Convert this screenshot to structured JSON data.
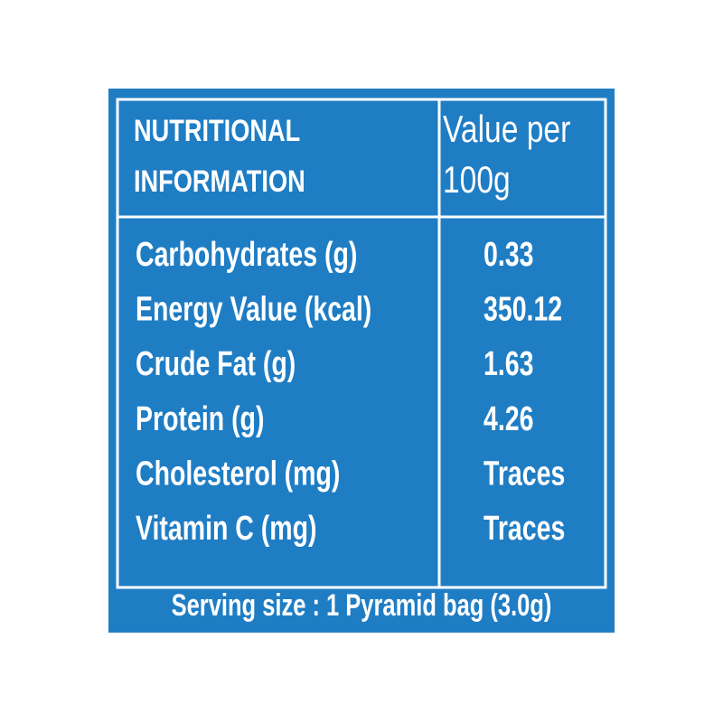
{
  "header": {
    "title_lines": [
      "NUTRITIONAL",
      "INFORMATION"
    ],
    "value_header_lines": [
      "Value per",
      "100g"
    ]
  },
  "table": {
    "rows": [
      [
        "Carbohydrates (g)",
        "0.33"
      ],
      [
        "Energy Value (kcal)",
        "350.12"
      ],
      [
        "Crude Fat (g)",
        "1.63"
      ],
      [
        "Protein (g)",
        "4.26"
      ],
      [
        "Cholesterol (mg)",
        "Traces"
      ],
      [
        "Vitamin C (mg)",
        "Traces"
      ]
    ]
  },
  "footer": "Serving size : 1 Pyramid bag (3.0g)"
}
